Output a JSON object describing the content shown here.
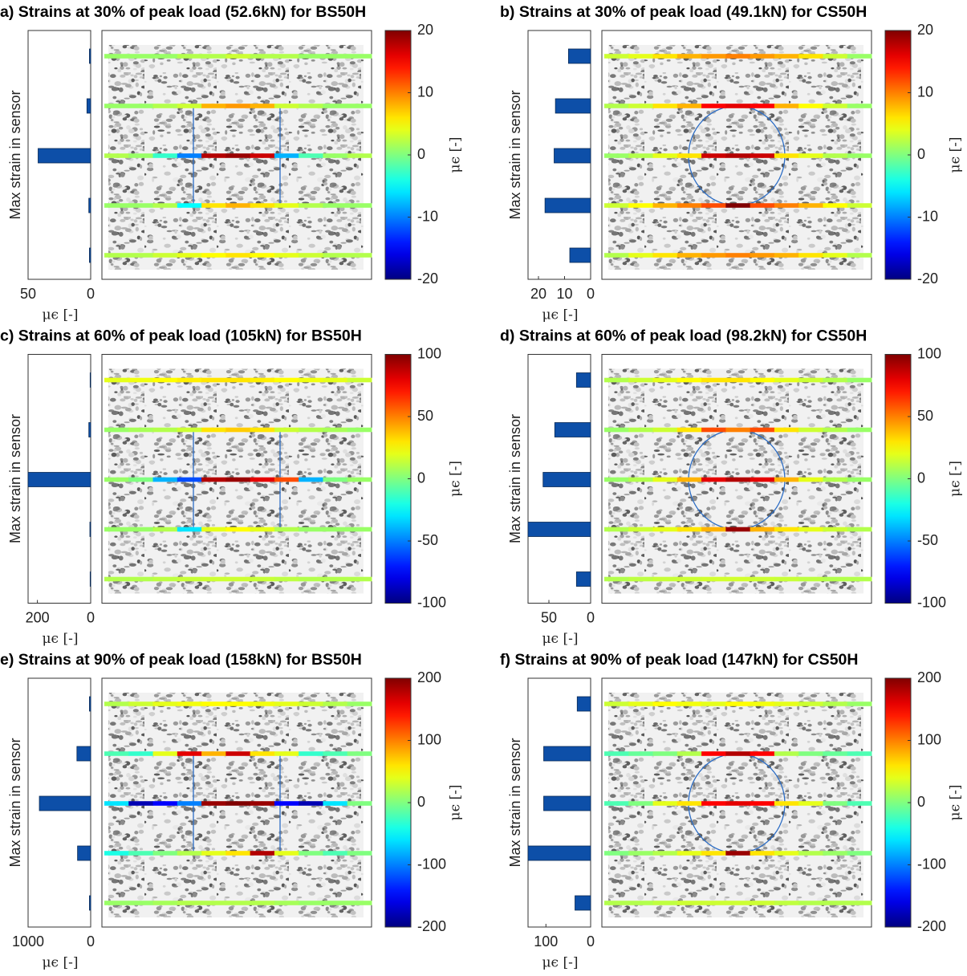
{
  "chart_data": [
    {
      "type": "barh",
      "title": "a) Strains at 30% of peak load (52.6kN) for BS50H",
      "ylabel": "Max strain in sensor",
      "xlabel": "μϵ [-]",
      "values": [
        1,
        3,
        42,
        1.5,
        1
      ],
      "color": "#0d4fa8",
      "xlim": [
        50,
        0
      ],
      "xticks": [
        50,
        0
      ],
      "colormap": "jet",
      "sensor_strains": [
        [
          1,
          1,
          1,
          2,
          2,
          3,
          2,
          2,
          1,
          1,
          1
        ],
        [
          1,
          1,
          2,
          3,
          8,
          9,
          8,
          3,
          2,
          1,
          1
        ],
        [
          2,
          1,
          -3,
          -10,
          18,
          19,
          17,
          -8,
          -2,
          1,
          2
        ],
        [
          1,
          1,
          2,
          -5,
          6,
          8,
          6,
          4,
          2,
          1,
          1
        ],
        [
          2,
          2,
          3,
          4,
          5,
          6,
          5,
          4,
          3,
          2,
          2
        ]
      ],
      "colorbar": {
        "label": "μϵ [-]",
        "clim": [
          -20,
          20
        ],
        "ticks": [
          -20,
          -10,
          0,
          10,
          20
        ]
      }
    },
    {
      "type": "barh",
      "title": "b) Strains at 30% of peak load (49.1kN) for CS50H",
      "ylabel": "Max strain in sensor",
      "xlabel": "μϵ [-]",
      "values": [
        8.5,
        13.5,
        14,
        17.5,
        8
      ],
      "color": "#0d4fa8",
      "xlim": [
        24,
        0
      ],
      "xticks": [
        20,
        10,
        0
      ],
      "colormap": "jet",
      "sensor_strains": [
        [
          3,
          4,
          6,
          8,
          9,
          10,
          9,
          8,
          6,
          3,
          1
        ],
        [
          2,
          3,
          6,
          8,
          15,
          16,
          15,
          8,
          5,
          3,
          1
        ],
        [
          1,
          2,
          4,
          6,
          17,
          18,
          17,
          6,
          4,
          2,
          1
        ],
        [
          3,
          5,
          8,
          10,
          12,
          20,
          12,
          10,
          8,
          5,
          3
        ],
        [
          2,
          4,
          6,
          8,
          9,
          10,
          9,
          8,
          6,
          4,
          2
        ]
      ],
      "colorbar": {
        "label": "μϵ [-]",
        "clim": [
          -20,
          20
        ],
        "ticks": [
          -20,
          -10,
          0,
          10,
          20
        ]
      }
    },
    {
      "type": "barh",
      "title": "c) Strains at 60% of peak load (105kN) for BS50H",
      "ylabel": "Max strain in sensor",
      "xlabel": "μϵ [-]",
      "values": [
        2,
        7,
        235,
        3,
        2
      ],
      "color": "#0d4fa8",
      "xlim": [
        235,
        0
      ],
      "xticks": [
        200,
        0
      ],
      "colormap": "jet",
      "sensor_strains": [
        [
          20,
          22,
          25,
          28,
          30,
          30,
          28,
          25,
          22,
          20,
          15
        ],
        [
          5,
          8,
          10,
          15,
          30,
          35,
          30,
          15,
          10,
          8,
          5
        ],
        [
          5,
          0,
          -40,
          -60,
          90,
          95,
          80,
          60,
          -40,
          0,
          5
        ],
        [
          5,
          5,
          10,
          -30,
          20,
          25,
          20,
          10,
          5,
          5,
          5
        ],
        [
          10,
          10,
          12,
          14,
          15,
          15,
          14,
          12,
          10,
          10,
          10
        ]
      ],
      "colorbar": {
        "label": "μϵ [-]",
        "clim": [
          -100,
          100
        ],
        "ticks": [
          -100,
          -50,
          0,
          50,
          100
        ]
      }
    },
    {
      "type": "barh",
      "title": "d) Strains at 60% of peak load (98.2kN) for CS50H",
      "ylabel": "Max strain in sensor",
      "xlabel": "μϵ [-]",
      "values": [
        17,
        43,
        57,
        75,
        17
      ],
      "color": "#0d4fa8",
      "xlim": [
        75,
        0
      ],
      "xticks": [
        50,
        0
      ],
      "colormap": "jet",
      "sensor_strains": [
        [
          10,
          15,
          20,
          25,
          30,
          30,
          25,
          20,
          15,
          10,
          5
        ],
        [
          5,
          10,
          15,
          30,
          60,
          50,
          60,
          30,
          15,
          10,
          5
        ],
        [
          5,
          10,
          20,
          40,
          80,
          90,
          80,
          40,
          20,
          10,
          5
        ],
        [
          10,
          15,
          20,
          30,
          40,
          95,
          40,
          30,
          20,
          15,
          10
        ],
        [
          10,
          12,
          14,
          15,
          16,
          16,
          15,
          14,
          12,
          10,
          10
        ]
      ],
      "colorbar": {
        "label": "μϵ [-]",
        "clim": [
          -100,
          100
        ],
        "ticks": [
          -100,
          -50,
          0,
          50,
          100
        ]
      }
    },
    {
      "type": "barh",
      "title": "e) Strains at 90% of peak load (158kN) for BS50H",
      "ylabel": "Max strain in sensor",
      "xlabel": "μϵ [-]",
      "values": [
        20,
        220,
        820,
        210,
        20
      ],
      "color": "#0d4fa8",
      "xlim": [
        1000,
        0
      ],
      "xticks": [
        1000,
        0
      ],
      "colormap": "jet",
      "sensor_strains": [
        [
          20,
          30,
          40,
          45,
          50,
          50,
          45,
          40,
          30,
          20,
          10
        ],
        [
          -20,
          -30,
          40,
          160,
          80,
          170,
          60,
          40,
          -30,
          -20,
          0
        ],
        [
          -60,
          -180,
          -150,
          -100,
          190,
          200,
          190,
          -150,
          -180,
          -60,
          0
        ],
        [
          -40,
          -20,
          0,
          20,
          40,
          60,
          180,
          40,
          0,
          -20,
          0
        ],
        [
          10,
          10,
          15,
          20,
          20,
          20,
          20,
          15,
          10,
          10,
          10
        ]
      ],
      "colorbar": {
        "label": "μϵ [-]",
        "clim": [
          -200,
          200
        ],
        "ticks": [
          -200,
          -100,
          0,
          100,
          200
        ]
      }
    },
    {
      "type": "barh",
      "title": "f) Strains at 90% of peak load (147kN) for CS50H",
      "ylabel": "Max strain in sensor",
      "xlabel": "μϵ [-]",
      "values": [
        30,
        105,
        105,
        140,
        35
      ],
      "color": "#0d4fa8",
      "xlim": [
        140,
        0
      ],
      "xticks": [
        100,
        0
      ],
      "colormap": "jet",
      "sensor_strains": [
        [
          30,
          40,
          50,
          45,
          40,
          50,
          45,
          40,
          30,
          20,
          10
        ],
        [
          -20,
          -10,
          0,
          20,
          150,
          180,
          150,
          20,
          0,
          -10,
          -20
        ],
        [
          -20,
          0,
          40,
          60,
          150,
          160,
          150,
          60,
          40,
          0,
          -20
        ],
        [
          0,
          10,
          20,
          40,
          60,
          190,
          60,
          40,
          20,
          10,
          0
        ],
        [
          20,
          20,
          25,
          30,
          30,
          30,
          30,
          25,
          20,
          20,
          20
        ]
      ],
      "colorbar": {
        "label": "μϵ [-]",
        "clim": [
          -200,
          200
        ],
        "ticks": [
          -200,
          -100,
          0,
          100,
          200
        ]
      }
    }
  ]
}
